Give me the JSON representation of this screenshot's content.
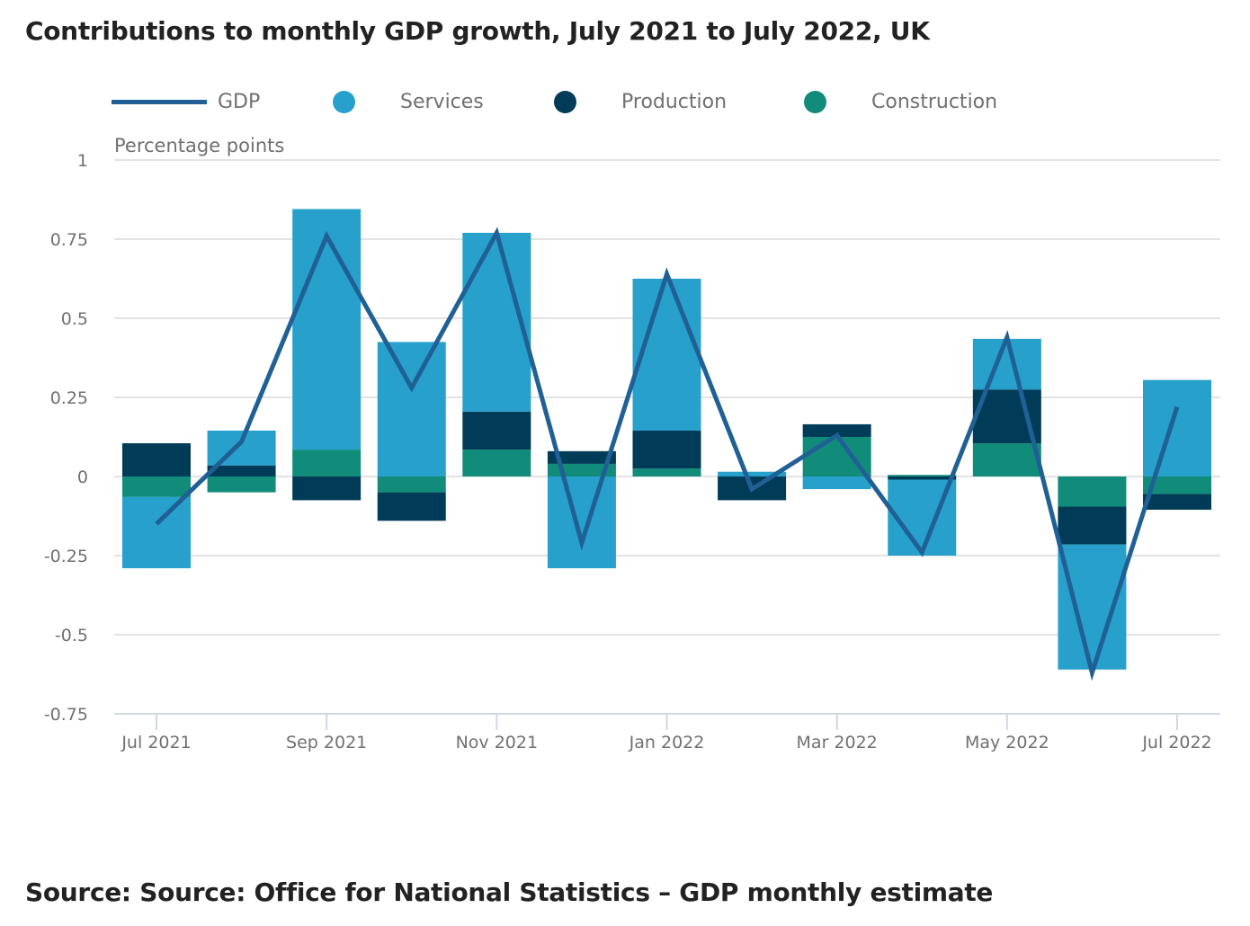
{
  "title": "Contributions to monthly GDP growth, July 2021 to July 2022, UK",
  "source": "Source: Source: Office for National Statistics – GDP monthly estimate",
  "legend": [
    {
      "label": "GDP",
      "shape": "line",
      "color": "#206095"
    },
    {
      "label": "Services",
      "shape": "circle",
      "color": "#27a0cc"
    },
    {
      "label": "Production",
      "shape": "circle",
      "color": "#003c57"
    },
    {
      "label": "Construction",
      "shape": "circle",
      "color": "#118c7b"
    }
  ],
  "chart_data": {
    "type": "bar",
    "subtype": "stacked bar with line overlay",
    "title": "Contributions to monthly GDP growth, July 2021 to July 2022, UK",
    "ylabel": "Percentage points",
    "xlabel": "",
    "ylim": [
      -0.75,
      1
    ],
    "yticks": [
      1,
      0.75,
      0.5,
      0.25,
      0,
      -0.25,
      -0.5,
      -0.75
    ],
    "ytick_labels": [
      "1",
      "0.75",
      "0.5",
      "0.25",
      "0",
      "-0.25",
      "-0.5",
      "-0.75"
    ],
    "grid": true,
    "legend_position": "top",
    "categories": [
      "Jul 2021",
      "Aug 2021",
      "Sep 2021",
      "Oct 2021",
      "Nov 2021",
      "Dec 2021",
      "Jan 2022",
      "Feb 2022",
      "Mar 2022",
      "Apr 2022",
      "May 2022",
      "Jun 2022",
      "Jul 2022"
    ],
    "xtick_labels": [
      "Jul 2021",
      "",
      "Sep 2021",
      "",
      "Nov 2021",
      "",
      "Jan 2022",
      "",
      "Mar 2022",
      "",
      "May 2022",
      "",
      "Jul 2022"
    ],
    "stack_order": [
      "Construction",
      "Production",
      "Services"
    ],
    "series": [
      {
        "name": "Construction",
        "type": "bar",
        "color": "#118c7b",
        "values": [
          -0.065,
          -0.05,
          0.085,
          -0.05,
          0.085,
          0.04,
          0.025,
          0.0,
          0.125,
          0.005,
          0.105,
          -0.095,
          -0.055
        ]
      },
      {
        "name": "Production",
        "type": "bar",
        "color": "#003c57",
        "values": [
          0.105,
          0.035,
          -0.075,
          -0.09,
          0.12,
          0.04,
          0.12,
          -0.075,
          0.04,
          -0.01,
          0.17,
          -0.12,
          -0.05
        ]
      },
      {
        "name": "Services",
        "type": "bar",
        "color": "#27a0cc",
        "values": [
          -0.225,
          0.11,
          0.76,
          0.425,
          0.565,
          -0.29,
          0.48,
          0.015,
          -0.04,
          -0.24,
          0.16,
          -0.395,
          0.305
        ]
      },
      {
        "name": "GDP",
        "type": "line",
        "color": "#206095",
        "values": [
          -0.15,
          0.11,
          0.76,
          0.28,
          0.77,
          -0.21,
          0.64,
          -0.04,
          0.13,
          -0.24,
          0.44,
          -0.62,
          0.22
        ]
      }
    ]
  }
}
